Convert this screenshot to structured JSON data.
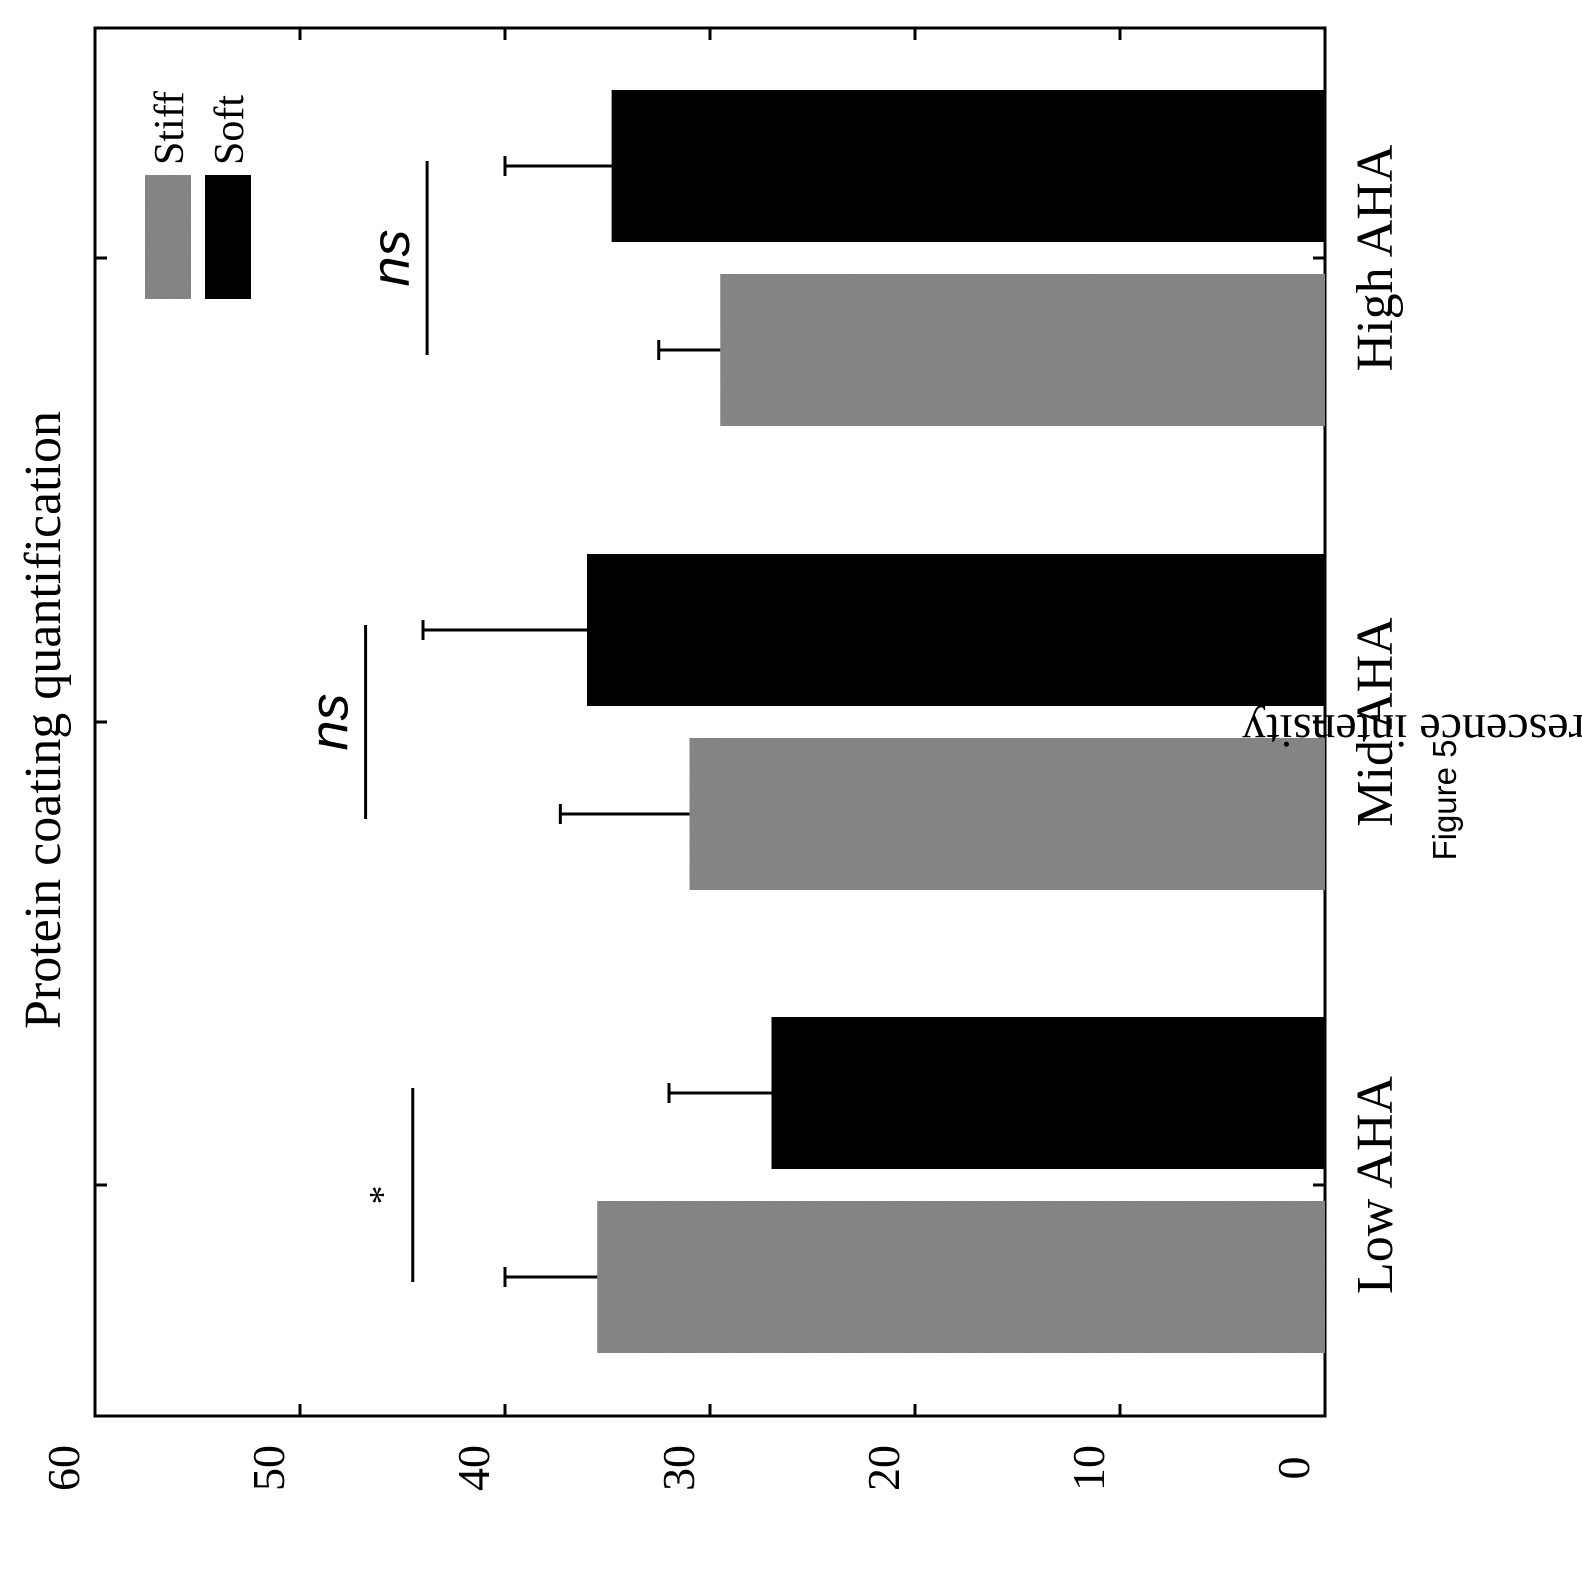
{
  "figure_label": "Figure 5",
  "chart_data": {
    "type": "bar",
    "orientation": "rotated -90 degrees (value axis runs horizontally, increasing to the left)",
    "title": "Protein coating quantification",
    "ylabel": "mean fluorescence intensity",
    "xlabel": "",
    "ylim": [
      0,
      60
    ],
    "yticks": [
      0,
      10,
      20,
      30,
      40,
      50,
      60
    ],
    "categories": [
      "Low AHA",
      "Mid AHA",
      "High AHA"
    ],
    "series": [
      {
        "name": "Stiff",
        "color": "#8a8a8a",
        "values": [
          35.5,
          31,
          29.5
        ],
        "errors": [
          4.5,
          6.3,
          3.0
        ]
      },
      {
        "name": "Soft",
        "color": "#000000",
        "values": [
          27,
          36,
          34.8
        ],
        "errors": [
          5.0,
          8.0,
          5.2
        ]
      }
    ],
    "annotations": [
      {
        "category": "Low AHA",
        "label": "*",
        "at_value": 44.5
      },
      {
        "category": "Mid AHA",
        "label": "ns",
        "at_value": 46.8
      },
      {
        "category": "High AHA",
        "label": "ns",
        "at_value": 43.8
      }
    ],
    "legend": {
      "position": "top-right",
      "entries": [
        "Stiff",
        "Soft"
      ]
    },
    "grid": false
  }
}
